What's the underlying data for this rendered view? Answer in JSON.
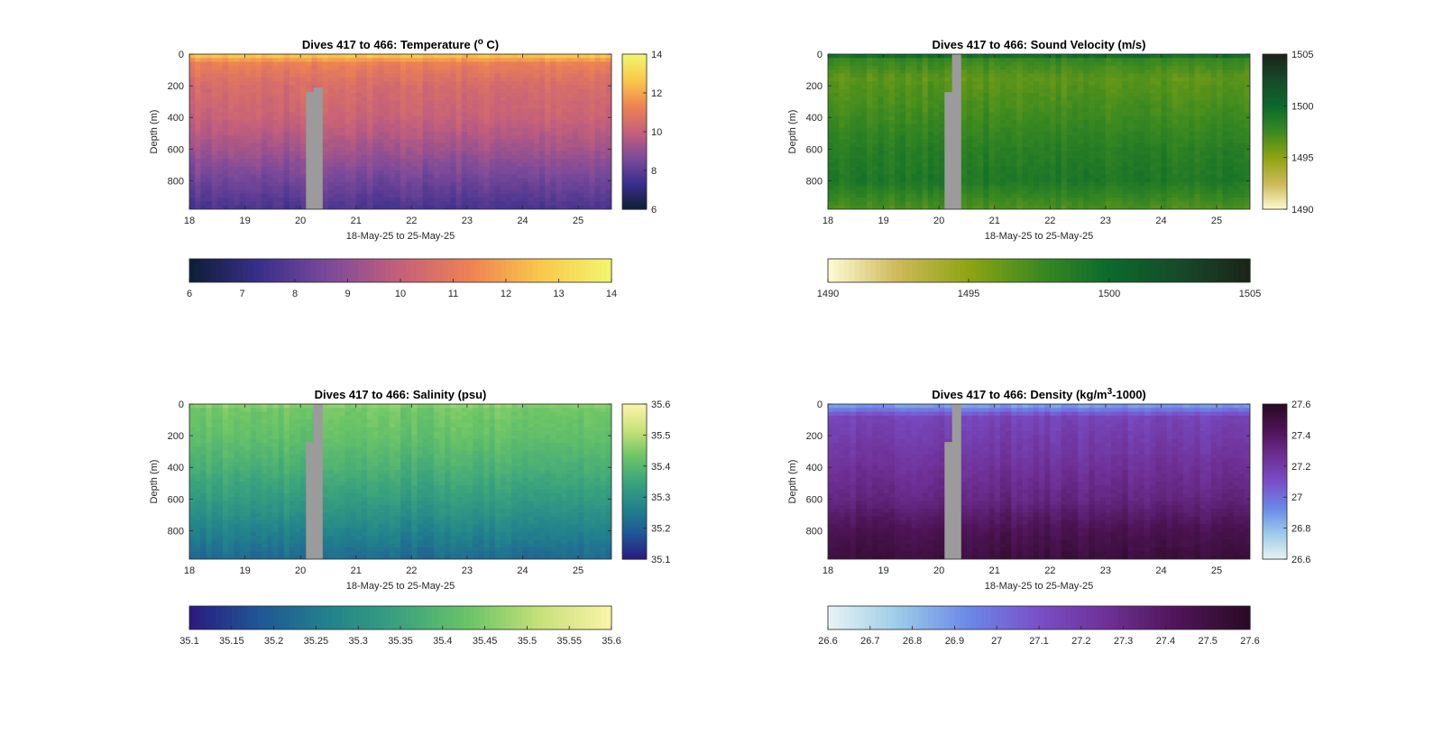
{
  "chart_data": [
    {
      "type": "heatmap",
      "title_main": "Dives 417 to 466: Temperature (",
      "title_sup": "o",
      "title_end": " C)",
      "xlabel": "18-May-25 to 25-May-25",
      "ylabel": "Depth (m)",
      "xlim": [
        18,
        25.6
      ],
      "ylim": [
        0,
        980
      ],
      "x_ticks": [
        "18",
        "19",
        "20",
        "21",
        "22",
        "23",
        "24",
        "25"
      ],
      "x_tick_values": [
        18,
        19,
        20,
        21,
        22,
        23,
        24,
        25
      ],
      "y_ticks": [
        "0",
        "200",
        "400",
        "600",
        "800"
      ],
      "y_tick_values": [
        0,
        200,
        400,
        600,
        800
      ],
      "colormap": [
        "#0d1e35",
        "#3a2f8c",
        "#7d4a9a",
        "#c5607a",
        "#ee8252",
        "#f9c84a",
        "#f1f66e"
      ],
      "clim": [
        6,
        14
      ],
      "vert_cbar_ticks": [
        "6",
        "8",
        "10",
        "12",
        "14"
      ],
      "vert_cbar_values": [
        6,
        8,
        10,
        12,
        14
      ],
      "horiz_cbar_ticks": [
        "6",
        "7",
        "8",
        "9",
        "10",
        "11",
        "12",
        "13",
        "14"
      ],
      "horiz_cbar_values": [
        6,
        7,
        8,
        9,
        10,
        11,
        12,
        13,
        14
      ],
      "z_profile_depths": [
        0,
        15,
        60,
        200,
        400,
        600,
        800,
        980
      ],
      "z_profile_values": [
        13.2,
        12.4,
        11.2,
        10.5,
        10.1,
        9.3,
        8.4,
        7.6
      ],
      "gap": {
        "x_from": 20.1,
        "x_to": 20.4,
        "depth_top": 210
      }
    },
    {
      "type": "heatmap",
      "title_main": "Dives 417 to 466: Sound Velocity (m/s)",
      "title_sup": "",
      "title_end": "",
      "xlabel": "18-May-25 to 25-May-25",
      "ylabel": "Depth (m)",
      "xlim": [
        18,
        25.6
      ],
      "ylim": [
        0,
        980
      ],
      "x_ticks": [
        "18",
        "19",
        "20",
        "21",
        "22",
        "23",
        "24",
        "25"
      ],
      "x_tick_values": [
        18,
        19,
        20,
        21,
        22,
        23,
        24,
        25
      ],
      "y_ticks": [
        "0",
        "200",
        "400",
        "600",
        "800"
      ],
      "y_tick_values": [
        0,
        200,
        400,
        600,
        800
      ],
      "colormap": [
        "#fefbd3",
        "#cdb959",
        "#8fa412",
        "#3c8a20",
        "#0b6a2c",
        "#174a2a",
        "#1a2418"
      ],
      "clim": [
        1490,
        1505
      ],
      "vert_cbar_ticks": [
        "1490",
        "1495",
        "1500",
        "1505"
      ],
      "vert_cbar_values": [
        1490,
        1495,
        1500,
        1505
      ],
      "horiz_cbar_ticks": [
        "1490",
        "1495",
        "1500",
        "1505"
      ],
      "horiz_cbar_values": [
        1490,
        1495,
        1500,
        1505
      ],
      "z_profile_depths": [
        0,
        20,
        150,
        400,
        600,
        800,
        980
      ],
      "z_profile_values": [
        1502,
        1498,
        1496.5,
        1497.5,
        1498.5,
        1499,
        1497
      ],
      "gap": {
        "x_from": 20.1,
        "x_to": 20.4,
        "depth_top": 0
      }
    },
    {
      "type": "heatmap",
      "title_main": "Dives 417 to 466: Salinity (psu)",
      "title_sup": "",
      "title_end": "",
      "xlabel": "18-May-25 to 25-May-25",
      "ylabel": "Depth (m)",
      "xlim": [
        18,
        25.6
      ],
      "ylim": [
        0,
        980
      ],
      "x_ticks": [
        "18",
        "19",
        "20",
        "21",
        "22",
        "23",
        "24",
        "25"
      ],
      "x_tick_values": [
        18,
        19,
        20,
        21,
        22,
        23,
        24,
        25
      ],
      "y_ticks": [
        "0",
        "200",
        "400",
        "600",
        "800"
      ],
      "y_tick_values": [
        0,
        200,
        400,
        600,
        800
      ],
      "colormap": [
        "#2a1a80",
        "#1f5796",
        "#22838c",
        "#3ba37d",
        "#6cc566",
        "#c8e17a",
        "#fbf4a8"
      ],
      "clim": [
        35.1,
        35.6
      ],
      "vert_cbar_ticks": [
        "35.1",
        "35.2",
        "35.3",
        "35.4",
        "35.5",
        "35.6"
      ],
      "vert_cbar_values": [
        35.1,
        35.2,
        35.3,
        35.4,
        35.5,
        35.6
      ],
      "horiz_cbar_ticks": [
        "35.1",
        "35.15",
        "35.2",
        "35.25",
        "35.3",
        "35.35",
        "35.4",
        "35.45",
        "35.5",
        "35.55",
        "35.6"
      ],
      "horiz_cbar_values": [
        35.1,
        35.15,
        35.2,
        35.25,
        35.3,
        35.35,
        35.4,
        35.45,
        35.5,
        35.55,
        35.6
      ],
      "z_profile_depths": [
        0,
        30,
        200,
        400,
        600,
        800,
        980
      ],
      "z_profile_values": [
        35.47,
        35.44,
        35.42,
        35.38,
        35.33,
        35.27,
        35.22
      ],
      "gap": {
        "x_from": 20.1,
        "x_to": 20.4,
        "depth_top": 0
      }
    },
    {
      "type": "heatmap",
      "title_main": "Dives 417 to 466: Density (kg/m",
      "title_sup": "3",
      "title_end": "-1000)",
      "xlabel": "18-May-25 to 25-May-25",
      "ylabel": "Depth (m)",
      "xlim": [
        18,
        25.6
      ],
      "ylim": [
        0,
        980
      ],
      "x_ticks": [
        "18",
        "19",
        "20",
        "21",
        "22",
        "23",
        "24",
        "25"
      ],
      "x_tick_values": [
        18,
        19,
        20,
        21,
        22,
        23,
        24,
        25
      ],
      "y_ticks": [
        "0",
        "200",
        "400",
        "600",
        "800"
      ],
      "y_tick_values": [
        0,
        200,
        400,
        600,
        800
      ],
      "colormap": [
        "#e8f4f4",
        "#9ccbe8",
        "#6b88e8",
        "#7a4fc8",
        "#6e2f94",
        "#4e1456",
        "#2a0a24"
      ],
      "clim": [
        26.6,
        27.6
      ],
      "vert_cbar_ticks": [
        "26.6",
        "26.8",
        "27",
        "27.2",
        "27.4",
        "27.6"
      ],
      "vert_cbar_values": [
        26.6,
        26.8,
        27,
        27.2,
        27.4,
        27.6
      ],
      "horiz_cbar_ticks": [
        "26.6",
        "26.7",
        "26.8",
        "26.9",
        "27",
        "27.1",
        "27.2",
        "27.3",
        "27.4",
        "27.5",
        "27.6"
      ],
      "horiz_cbar_values": [
        26.6,
        26.7,
        26.8,
        26.9,
        27,
        27.1,
        27.2,
        27.3,
        27.4,
        27.5,
        27.6
      ],
      "z_profile_depths": [
        0,
        30,
        80,
        300,
        600,
        800,
        980
      ],
      "z_profile_values": [
        26.85,
        26.95,
        27.15,
        27.22,
        27.32,
        27.45,
        27.52
      ],
      "gap": {
        "x_from": 20.1,
        "x_to": 20.4,
        "depth_top": 0
      }
    }
  ]
}
